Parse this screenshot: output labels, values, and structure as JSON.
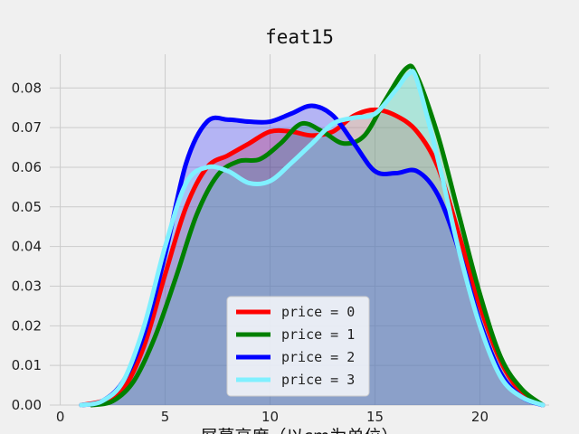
{
  "chart_data": {
    "type": "area",
    "title": "feat15",
    "xlabel": "屏幕高度（以cm为单位）",
    "ylabel": "",
    "xlim": [
      -0.5,
      23.3
    ],
    "ylim": [
      0.0,
      0.0885
    ],
    "xticks": [
      0,
      5,
      10,
      15,
      20
    ],
    "yticks": [
      0.0,
      0.01,
      0.02,
      0.03,
      0.04,
      0.05,
      0.06,
      0.07,
      0.08
    ],
    "ytick_labels": [
      "0.00",
      "0.01",
      "0.02",
      "0.03",
      "0.04",
      "0.05",
      "0.06",
      "0.07",
      "0.08"
    ],
    "grid": true,
    "legend_position": "bottom-center",
    "series": [
      {
        "name": "price = 0",
        "color": "#ff0000",
        "fill": "#ff0000",
        "points": [
          [
            1.0,
            0.0
          ],
          [
            2.0,
            0.001
          ],
          [
            3.0,
            0.004
          ],
          [
            4.0,
            0.015
          ],
          [
            5.0,
            0.033
          ],
          [
            6.0,
            0.05
          ],
          [
            7.0,
            0.06
          ],
          [
            8.0,
            0.063
          ],
          [
            9.0,
            0.066
          ],
          [
            10.0,
            0.069
          ],
          [
            11.0,
            0.069
          ],
          [
            12.0,
            0.068
          ],
          [
            13.0,
            0.069
          ],
          [
            14.0,
            0.073
          ],
          [
            15.0,
            0.0745
          ],
          [
            16.0,
            0.073
          ],
          [
            17.0,
            0.069
          ],
          [
            18.0,
            0.06
          ],
          [
            19.0,
            0.043
          ],
          [
            20.0,
            0.025
          ],
          [
            21.0,
            0.011
          ],
          [
            22.0,
            0.003
          ],
          [
            23.0,
            0.0
          ]
        ]
      },
      {
        "name": "price = 1",
        "color": "#008000",
        "fill": "#20b060",
        "points": [
          [
            1.5,
            0.0
          ],
          [
            2.5,
            0.001
          ],
          [
            3.5,
            0.006
          ],
          [
            4.5,
            0.017
          ],
          [
            5.5,
            0.032
          ],
          [
            6.5,
            0.048
          ],
          [
            7.5,
            0.058
          ],
          [
            8.5,
            0.0615
          ],
          [
            9.5,
            0.062
          ],
          [
            10.5,
            0.066
          ],
          [
            11.5,
            0.071
          ],
          [
            12.5,
            0.069
          ],
          [
            13.5,
            0.066
          ],
          [
            14.5,
            0.068
          ],
          [
            15.5,
            0.077
          ],
          [
            16.5,
            0.085
          ],
          [
            17.0,
            0.083
          ],
          [
            18.0,
            0.068
          ],
          [
            19.0,
            0.048
          ],
          [
            20.0,
            0.028
          ],
          [
            21.0,
            0.012
          ],
          [
            22.0,
            0.004
          ],
          [
            23.0,
            0.0
          ]
        ]
      },
      {
        "name": "price = 2",
        "color": "#0000ff",
        "fill": "#0000ff",
        "points": [
          [
            1.0,
            0.0
          ],
          [
            2.0,
            0.001
          ],
          [
            3.0,
            0.006
          ],
          [
            4.0,
            0.018
          ],
          [
            5.0,
            0.038
          ],
          [
            6.0,
            0.061
          ],
          [
            7.0,
            0.0715
          ],
          [
            8.0,
            0.072
          ],
          [
            9.0,
            0.0715
          ],
          [
            10.0,
            0.0715
          ],
          [
            11.0,
            0.0735
          ],
          [
            12.0,
            0.0755
          ],
          [
            13.0,
            0.073
          ],
          [
            14.0,
            0.066
          ],
          [
            15.0,
            0.059
          ],
          [
            16.0,
            0.0585
          ],
          [
            17.0,
            0.059
          ],
          [
            18.0,
            0.053
          ],
          [
            19.0,
            0.039
          ],
          [
            20.0,
            0.021
          ],
          [
            21.0,
            0.008
          ],
          [
            22.0,
            0.002
          ],
          [
            23.0,
            0.0
          ]
        ]
      },
      {
        "name": "price = 3",
        "color": "#80f0ff",
        "fill": "#80f0ff",
        "points": [
          [
            1.0,
            0.0
          ],
          [
            2.0,
            0.001
          ],
          [
            3.0,
            0.006
          ],
          [
            4.0,
            0.02
          ],
          [
            5.0,
            0.04
          ],
          [
            6.0,
            0.056
          ],
          [
            7.0,
            0.06
          ],
          [
            8.0,
            0.059
          ],
          [
            9.0,
            0.056
          ],
          [
            10.0,
            0.0565
          ],
          [
            11.0,
            0.061
          ],
          [
            12.0,
            0.066
          ],
          [
            13.0,
            0.071
          ],
          [
            14.0,
            0.0725
          ],
          [
            15.0,
            0.0735
          ],
          [
            16.0,
            0.0795
          ],
          [
            16.6,
            0.0835
          ],
          [
            17.0,
            0.082
          ],
          [
            18.0,
            0.062
          ],
          [
            19.0,
            0.039
          ],
          [
            20.0,
            0.02
          ],
          [
            21.0,
            0.007
          ],
          [
            22.0,
            0.002
          ],
          [
            23.0,
            0.0
          ]
        ]
      }
    ]
  }
}
